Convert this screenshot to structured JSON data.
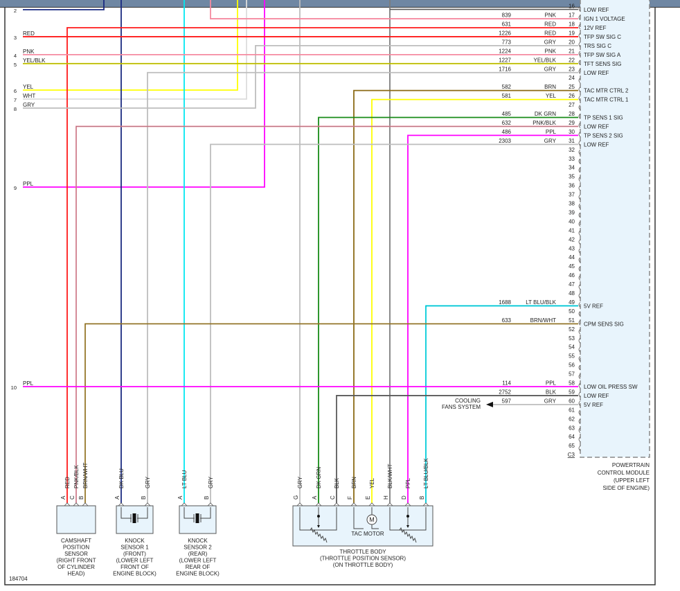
{
  "diagram_id": "184704",
  "colors": {
    "RED": "#ff1a1a",
    "PNK": "#f58aa0",
    "GRY": "#bdbdbd",
    "YEL": "#ffff00",
    "YEL/BLK": "#d6d600",
    "BRN": "#8b6a14",
    "DK GRN": "#178a17",
    "PNK/BLK": "#e58c9c",
    "PPL": "#ff00ff",
    "LT BLU": "#00e8f0",
    "LT BLU/BLK": "#00e0f0",
    "BRN/WHT": "#a6842e",
    "BLK": "#5a5a5a",
    "DK BLU": "#1a2a80",
    "WHT": "#dcdcdc",
    "BLK/WHT": "#8a8a8a",
    "module_fill": "#e8f4fc"
  },
  "left_connector": [
    {
      "num": "2",
      "color": "DK BLU"
    },
    {
      "num": "3",
      "color": "RED"
    },
    {
      "num": "4",
      "color": "PNK"
    },
    {
      "num": "5",
      "color": "YEL/BLK"
    },
    {
      "num": "6",
      "color": "YEL"
    },
    {
      "num": "7",
      "color": "WHT"
    },
    {
      "num": "8",
      "color": "GRY"
    },
    {
      "num": "9",
      "color": "PPL"
    },
    {
      "num": "10",
      "color": "PPL"
    }
  ],
  "pcm": {
    "connector": "C3",
    "label": [
      "POWERTRAIN",
      "CONTROL MODULE",
      "(UPPER LEFT",
      "SIDE OF ENGINE)"
    ],
    "pins": [
      {
        "num": 16,
        "circuit": "",
        "color": "",
        "function": "LOW REF"
      },
      {
        "num": 17,
        "circuit": "839",
        "color": "PNK",
        "function": "IGN 1 VOLTAGE"
      },
      {
        "num": 18,
        "circuit": "631",
        "color": "RED",
        "function": "12V REF"
      },
      {
        "num": 19,
        "circuit": "1226",
        "color": "RED",
        "function": "TFP SW SIG C"
      },
      {
        "num": 20,
        "circuit": "773",
        "color": "GRY",
        "function": "TRS SIG C"
      },
      {
        "num": 21,
        "circuit": "1224",
        "color": "PNK",
        "function": "TFP SW SIG A"
      },
      {
        "num": 22,
        "circuit": "1227",
        "color": "YEL/BLK",
        "function": "TFT SENS SIG"
      },
      {
        "num": 23,
        "circuit": "1716",
        "color": "GRY",
        "function": "LOW REF"
      },
      {
        "num": 24
      },
      {
        "num": 25,
        "circuit": "582",
        "color": "BRN",
        "function": "TAC MTR CTRL 2"
      },
      {
        "num": 26,
        "circuit": "581",
        "color": "YEL",
        "function": "TAC MTR CTRL 1"
      },
      {
        "num": 27
      },
      {
        "num": 28,
        "circuit": "485",
        "color": "DK GRN",
        "function": "TP SENS 1 SIG"
      },
      {
        "num": 29,
        "circuit": "632",
        "color": "PNK/BLK",
        "function": "LOW REF"
      },
      {
        "num": 30,
        "circuit": "486",
        "color": "PPL",
        "function": "TP SENS 2 SIG"
      },
      {
        "num": 31,
        "circuit": "2303",
        "color": "GRY",
        "function": "LOW REF"
      },
      {
        "num": 32
      },
      {
        "num": 33
      },
      {
        "num": 34
      },
      {
        "num": 35
      },
      {
        "num": 36
      },
      {
        "num": 37
      },
      {
        "num": 38
      },
      {
        "num": 39
      },
      {
        "num": 40
      },
      {
        "num": 41
      },
      {
        "num": 42
      },
      {
        "num": 43
      },
      {
        "num": 44
      },
      {
        "num": 45
      },
      {
        "num": 46
      },
      {
        "num": 47
      },
      {
        "num": 48
      },
      {
        "num": 49,
        "circuit": "1688",
        "color": "LT BLU/BLK",
        "function": "5V REF"
      },
      {
        "num": 50
      },
      {
        "num": 51,
        "circuit": "633",
        "color": "BRN/WHT",
        "function": "CPM SENS SIG"
      },
      {
        "num": 52
      },
      {
        "num": 53
      },
      {
        "num": 54
      },
      {
        "num": 55
      },
      {
        "num": 56
      },
      {
        "num": 57
      },
      {
        "num": 58,
        "circuit": "114",
        "color": "PPL",
        "function": "LOW OIL PRESS SW"
      },
      {
        "num": 59,
        "circuit": "2752",
        "color": "BLK",
        "function": "LOW REF"
      },
      {
        "num": 60,
        "circuit": "597",
        "color": "GRY",
        "function": "5V REF"
      },
      {
        "num": 61
      },
      {
        "num": 62
      },
      {
        "num": 63
      },
      {
        "num": 64
      },
      {
        "num": 65
      }
    ]
  },
  "cooling_fans": [
    "COOLING",
    "FANS SYSTEM"
  ],
  "components": [
    {
      "id": "camshaft",
      "pins": [
        {
          "letter": "A",
          "color": "RED"
        },
        {
          "letter": "C",
          "color": "PNK/BLK"
        },
        {
          "letter": "B",
          "color": "BRN/WHT"
        }
      ],
      "label": [
        "CAMSHAFT",
        "POSITION",
        "SENSOR",
        "(RIGHT FRONT",
        "OF CYLINDER",
        "HEAD)"
      ]
    },
    {
      "id": "knock1",
      "pins": [
        {
          "letter": "A",
          "color": "DK BLU"
        },
        {
          "letter": "B",
          "color": "GRY"
        }
      ],
      "label": [
        "KNOCK",
        "SENSOR 1",
        "(FRONT)",
        "(LOWER LEFT",
        "FRONT OF",
        "ENGINE BLOCK)"
      ]
    },
    {
      "id": "knock2",
      "pins": [
        {
          "letter": "A",
          "color": "LT BLU"
        },
        {
          "letter": "B",
          "color": "GRY"
        }
      ],
      "label": [
        "KNOCK",
        "SENSOR 2",
        "(REAR)",
        "(LOWER LEFT",
        "REAR OF",
        "ENGINE BLOCK)"
      ]
    },
    {
      "id": "throttle",
      "pins": [
        {
          "letter": "G",
          "color": "GRY"
        },
        {
          "letter": "A",
          "color": "DK GRN"
        },
        {
          "letter": "C",
          "color": "BLK"
        },
        {
          "letter": "F",
          "color": "BRN"
        },
        {
          "letter": "E",
          "color": "YEL"
        },
        {
          "letter": "H",
          "color": "BLK/WHT"
        },
        {
          "letter": "D",
          "color": "PPL"
        },
        {
          "letter": "B",
          "color": "LT BLU/BLK"
        }
      ],
      "motor_label": "TAC MOTOR",
      "motor_symbol": "M",
      "label": [
        "THROTTLE BODY",
        "(THROTTLE POSITION SENSOR)",
        "(ON THROTTLE BODY)"
      ]
    }
  ]
}
